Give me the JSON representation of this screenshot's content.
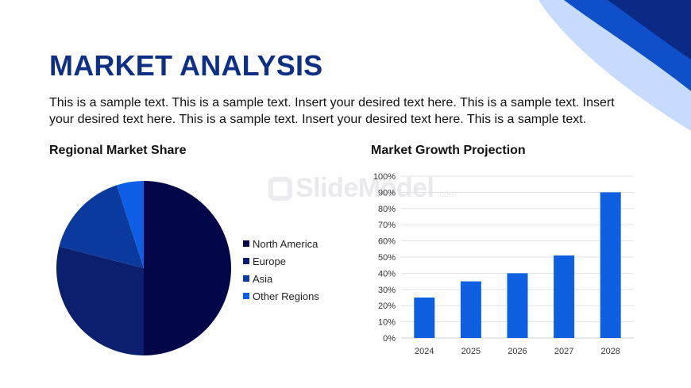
{
  "slide": {
    "title": "MARKET ANALYSIS",
    "intro_text": "This is a sample text. This is a sample text. Insert your desired text here. This is a sample text. Insert your desired text here. This is a sample text. Insert your desired text here. This is a sample text.",
    "watermark_text": "SlideModel",
    "watermark_domain": ".com"
  },
  "colors": {
    "title": "#0d2f86",
    "deco_dark": "#0a2a85",
    "deco_mid": "#0f4fc9",
    "deco_light": "#c7dbff"
  },
  "chart_data": [
    {
      "type": "pie",
      "title": "Regional Market Share",
      "legend_position": "right",
      "slices": [
        {
          "label": "North America",
          "value": 50,
          "color": "#03074a"
        },
        {
          "label": "Europe",
          "value": 29,
          "color": "#0b1f6e"
        },
        {
          "label": "Asia",
          "value": 16,
          "color": "#0b3a9e"
        },
        {
          "label": "Other Regions",
          "value": 5,
          "color": "#0f5fe6"
        }
      ]
    },
    {
      "type": "bar",
      "title": "Market Growth Projection",
      "categories": [
        "2024",
        "2025",
        "2026",
        "2027",
        "2028"
      ],
      "values": [
        25,
        35,
        40,
        51,
        90
      ],
      "ylim": [
        0,
        100
      ],
      "yticks": [
        0,
        10,
        20,
        30,
        40,
        50,
        60,
        70,
        80,
        90,
        100
      ],
      "ytick_suffix": "%",
      "bar_color": "#0f60e0",
      "grid": true,
      "xlabel": "",
      "ylabel": ""
    }
  ]
}
